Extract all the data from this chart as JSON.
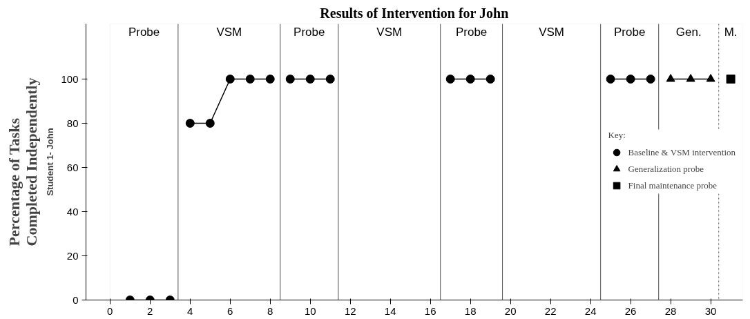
{
  "chart_data": {
    "type": "line",
    "title": "Results of Intervention for John",
    "ylabel": "Percentage of Tasks\nCompleted Independently",
    "annotations": [
      "Student 1- John"
    ],
    "legend_title": "Key:",
    "legend": "right",
    "grid": false,
    "xlim": [
      -1.2,
      31.6
    ],
    "ylim": [
      0,
      125
    ],
    "xticks": [
      0,
      2,
      4,
      6,
      8,
      10,
      12,
      14,
      16,
      18,
      20,
      22,
      24,
      26,
      28,
      30
    ],
    "yticks": [
      0,
      20,
      40,
      60,
      80,
      100
    ],
    "series": [
      {
        "name": "Baseline & VSM intervention",
        "color": "#000000",
        "marker": "circle",
        "x": [
          1,
          2,
          3,
          3.5,
          4,
          5,
          6,
          7,
          8,
          8.5,
          9,
          10,
          11,
          14,
          17,
          18,
          19,
          22,
          25,
          26,
          27
        ],
        "values": [
          0,
          0,
          0,
          null,
          80,
          80,
          100,
          100,
          100,
          null,
          100,
          100,
          100,
          null,
          100,
          100,
          100,
          null,
          100,
          100,
          100
        ]
      },
      {
        "name": "Generalization probe",
        "color": "#000000",
        "marker": "triangle",
        "x": [
          28,
          29,
          30
        ],
        "values": [
          100,
          100,
          100
        ]
      },
      {
        "name": "Final maintenance probe",
        "color": "#000000",
        "marker": "square",
        "x": [
          31
        ],
        "values": [
          100
        ]
      }
    ],
    "ref_lines": [
      {
        "axis": "x",
        "value": 3.4
      },
      {
        "axis": "x",
        "value": 8.5
      },
      {
        "axis": "x",
        "value": 11.4
      },
      {
        "axis": "x",
        "value": 16.5
      },
      {
        "axis": "x",
        "value": 19.6
      },
      {
        "axis": "x",
        "value": 24.5
      },
      {
        "axis": "x",
        "value": 27.4
      },
      {
        "axis": "x",
        "value": 30.4,
        "line_style": "dotted"
      }
    ],
    "bands": [
      {
        "axis": "x",
        "from": 0,
        "to": 3.4,
        "label": "Probe",
        "color": "#ffffff"
      },
      {
        "axis": "x",
        "from": 3.4,
        "to": 8.5,
        "label": "VSM",
        "color": "#ffffff"
      },
      {
        "axis": "x",
        "from": 8.5,
        "to": 11.4,
        "label": "Probe",
        "color": "#ffffff"
      },
      {
        "axis": "x",
        "from": 11.4,
        "to": 16.5,
        "label": "VSM",
        "color": "#ffffff"
      },
      {
        "axis": "x",
        "from": 16.5,
        "to": 19.6,
        "label": "Probe",
        "color": "#ffffff"
      },
      {
        "axis": "x",
        "from": 19.6,
        "to": 24.5,
        "label": "VSM",
        "color": "#ffffff"
      },
      {
        "axis": "x",
        "from": 24.5,
        "to": 27.4,
        "label": "Probe",
        "color": "#ffffff"
      },
      {
        "axis": "x",
        "from": 27.4,
        "to": 30.4,
        "label": "Gen.",
        "color": "#ffffff"
      },
      {
        "axis": "x",
        "from": 30.4,
        "to": 31.6,
        "label": "M.",
        "color": "#ffffff"
      }
    ]
  }
}
